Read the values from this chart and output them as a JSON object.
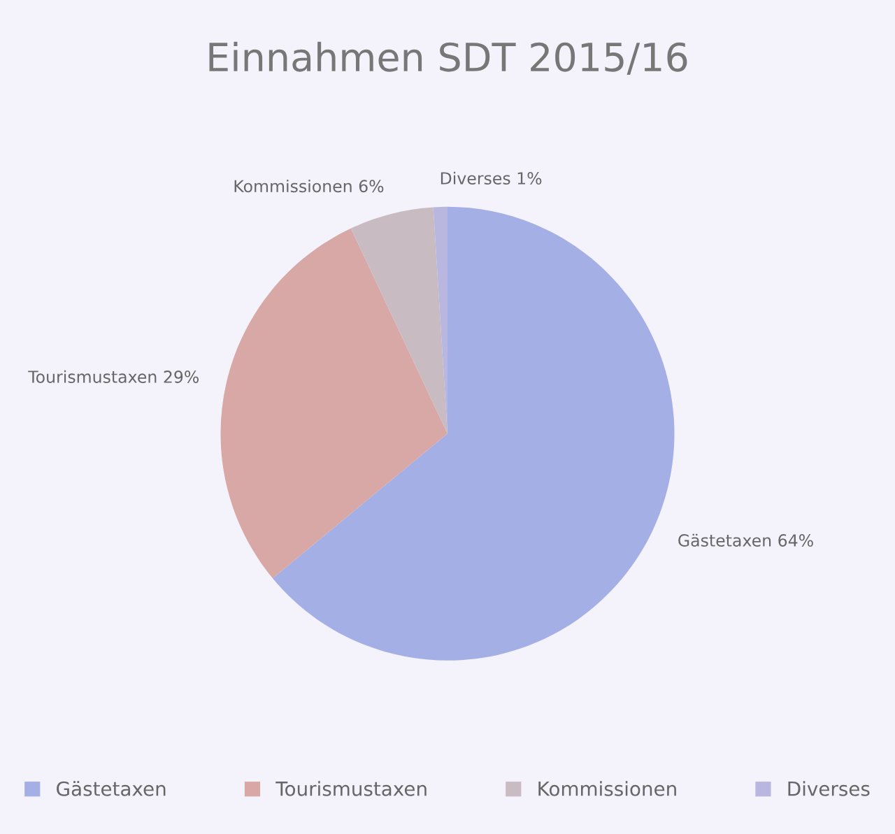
{
  "chart_data": {
    "type": "pie",
    "title": "Einnahmen SDT 2015/16",
    "categories": [
      "Gästetaxen",
      "Tourismustaxen",
      "Kommissionen",
      "Diverses"
    ],
    "values": [
      64,
      29,
      6,
      1
    ],
    "value_labels": [
      "64%",
      "29%",
      "6%",
      "1%"
    ],
    "colors": [
      "#a4afe6",
      "#d8a8a6",
      "#c8bcc2",
      "#b9b6df"
    ],
    "legend": "bottom"
  }
}
